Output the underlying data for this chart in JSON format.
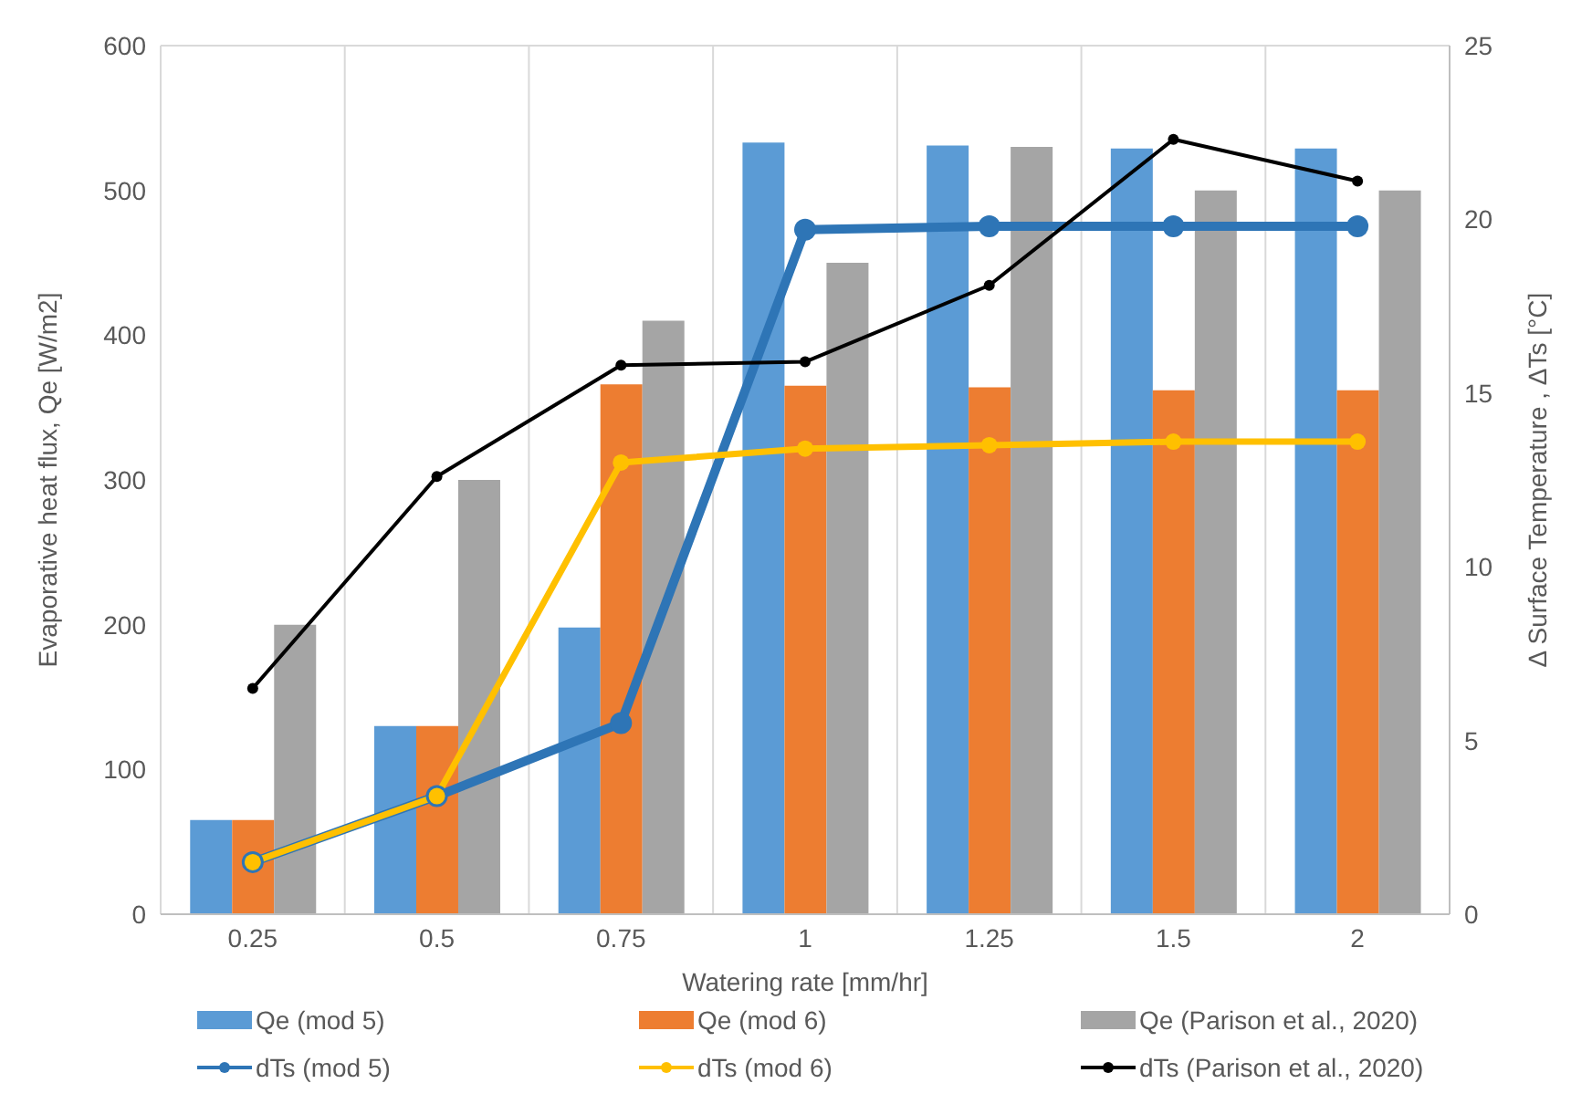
{
  "chart_data": {
    "type": "bar",
    "xlabel": "Watering rate [mm/hr]",
    "ylabel": "Evaporative heat flux, Qe [W/m2]",
    "y2label": "Δ Surface Temperature , ΔTs [°C]",
    "categories": [
      "0.25",
      "0.5",
      "0.75",
      "1",
      "1.25",
      "1.5",
      "2"
    ],
    "series": [
      {
        "name": "Qe (mod 5)",
        "color": "#5b9bd5",
        "values": [
          65,
          130,
          198,
          533,
          531,
          529,
          529
        ]
      },
      {
        "name": "Qe (mod 6)",
        "color": "#ed7d31",
        "values": [
          65,
          130,
          366,
          365,
          364,
          362,
          362
        ]
      },
      {
        "name": "Qe (Parison et al., 2020)",
        "color": "#a5a5a5",
        "values": [
          200,
          300,
          410,
          450,
          530,
          500,
          500
        ]
      },
      {
        "name": "dTs (mod 5)",
        "type": "line",
        "axis": "y2",
        "color": "#2e75b6",
        "values": [
          1.5,
          3.4,
          5.5,
          19.7,
          19.8,
          19.8,
          19.8
        ]
      },
      {
        "name": "dTs (mod 6)",
        "type": "line",
        "axis": "y2",
        "color": "#ffc000",
        "values": [
          1.5,
          3.4,
          13.0,
          13.4,
          13.5,
          13.6,
          13.6
        ]
      },
      {
        "name": "dTs (Parison et al., 2020)",
        "type": "line",
        "axis": "y2",
        "color": "#000000",
        "values": [
          6.5,
          12.6,
          15.8,
          15.9,
          18.1,
          22.3,
          21.1
        ]
      }
    ],
    "ylim": [
      0,
      600
    ],
    "yticks": [
      0,
      100,
      200,
      300,
      400,
      500,
      600
    ],
    "y2lim": [
      0,
      25
    ],
    "y2ticks": [
      0,
      5,
      10,
      15,
      20,
      25
    ],
    "grid": true,
    "legend": "bottom",
    "marker": "circle"
  }
}
